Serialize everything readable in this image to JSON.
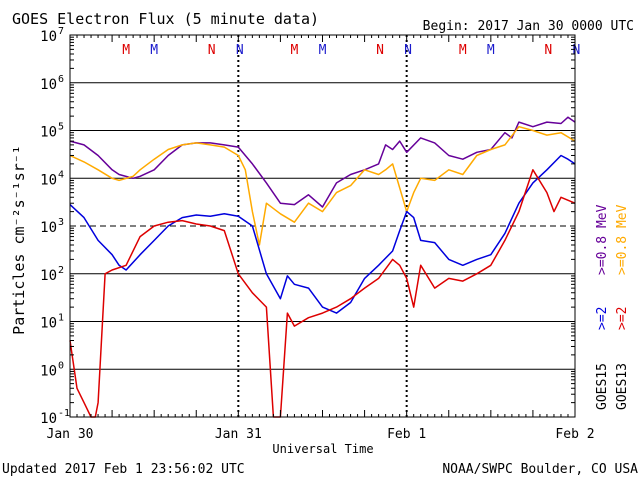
{
  "chart_data": {
    "type": "line",
    "title": "GOES Electron Flux (5 minute data)",
    "begin_label": "Begin: 2017 Jan 30 0000 UTC",
    "xlabel": "Universal Time",
    "ylabel": "Particles cm⁻²s⁻¹sr⁻¹",
    "y_scale": "log",
    "ylim": [
      0.1,
      10000000
    ],
    "y_ticks": [
      {
        "value": 0.1,
        "base": "10",
        "exp": "-1"
      },
      {
        "value": 1,
        "base": "10",
        "exp": "0"
      },
      {
        "value": 10,
        "base": "10",
        "exp": "1"
      },
      {
        "value": 100,
        "base": "10",
        "exp": "2"
      },
      {
        "value": 1000,
        "base": "10",
        "exp": "3"
      },
      {
        "value": 10000,
        "base": "10",
        "exp": "4"
      },
      {
        "value": 100000,
        "base": "10",
        "exp": "5"
      },
      {
        "value": 1000000,
        "base": "10",
        "exp": "6"
      },
      {
        "value": 10000000,
        "base": "10",
        "exp": "7"
      }
    ],
    "dashed_level": 1000,
    "xlim": [
      0,
      72
    ],
    "x_unit": "hours since 2017 Jan 30 0000 UTC",
    "x_ticks": [
      {
        "value": 0,
        "label": "Jan 30"
      },
      {
        "value": 24,
        "label": "Jan 31"
      },
      {
        "value": 48,
        "label": "Feb 1"
      },
      {
        "value": 72,
        "label": "Feb 2"
      }
    ],
    "day_lines": [
      24,
      48
    ],
    "mn_markers": [
      {
        "t": 8,
        "label": "M",
        "color": "#dd0000"
      },
      {
        "t": 12,
        "label": "M",
        "color": "#1a1acc"
      },
      {
        "t": 20.2,
        "label": "N",
        "color": "#dd0000"
      },
      {
        "t": 24.2,
        "label": "N",
        "color": "#1a1acc"
      },
      {
        "t": 32,
        "label": "M",
        "color": "#dd0000"
      },
      {
        "t": 36,
        "label": "M",
        "color": "#1a1acc"
      },
      {
        "t": 44.2,
        "label": "N",
        "color": "#dd0000"
      },
      {
        "t": 48.2,
        "label": "N",
        "color": "#1a1acc"
      },
      {
        "t": 56,
        "label": "M",
        "color": "#dd0000"
      },
      {
        "t": 60,
        "label": "M",
        "color": "#1a1acc"
      },
      {
        "t": 68.2,
        "label": "N",
        "color": "#dd0000"
      },
      {
        "t": 72.2,
        "label": "N",
        "color": "#1a1acc"
      }
    ],
    "legend": {
      "placement": "right",
      "goes15": {
        "label": "GOES15",
        "e08": ">=0.8 MeV",
        "e2": ">=2"
      },
      "goes13": {
        "label": "GOES13",
        "e08": ">=0.8 MeV",
        "e2": ">=2"
      }
    },
    "series": [
      {
        "name": "GOES15 >=0.8 MeV",
        "color": "#660099",
        "points": [
          [
            0,
            60000
          ],
          [
            2,
            50000
          ],
          [
            4,
            30000
          ],
          [
            6,
            15000
          ],
          [
            7,
            12000
          ],
          [
            9,
            10000
          ],
          [
            10,
            11000
          ],
          [
            12,
            15000
          ],
          [
            14,
            30000
          ],
          [
            16,
            50000
          ],
          [
            18,
            55000
          ],
          [
            20,
            55000
          ],
          [
            22,
            50000
          ],
          [
            24,
            45000
          ],
          [
            26,
            20000
          ],
          [
            28,
            8000
          ],
          [
            30,
            3000
          ],
          [
            32,
            2800
          ],
          [
            34,
            4500
          ],
          [
            36,
            2500
          ],
          [
            38,
            8000
          ],
          [
            40,
            12000
          ],
          [
            42,
            15000
          ],
          [
            44,
            20000
          ],
          [
            45,
            50000
          ],
          [
            46,
            40000
          ],
          [
            47,
            60000
          ],
          [
            48,
            35000
          ],
          [
            50,
            70000
          ],
          [
            52,
            55000
          ],
          [
            54,
            30000
          ],
          [
            56,
            25000
          ],
          [
            58,
            35000
          ],
          [
            60,
            40000
          ],
          [
            62,
            90000
          ],
          [
            63,
            70000
          ],
          [
            64,
            150000
          ],
          [
            66,
            120000
          ],
          [
            68,
            150000
          ],
          [
            70,
            140000
          ],
          [
            71,
            190000
          ],
          [
            72,
            150000
          ]
        ]
      },
      {
        "name": "GOES13 >=0.8 MeV",
        "color": "#ffaa00",
        "points": [
          [
            0,
            30000
          ],
          [
            2,
            22000
          ],
          [
            4,
            15000
          ],
          [
            6,
            10000
          ],
          [
            7,
            9000
          ],
          [
            9,
            11000
          ],
          [
            10,
            15000
          ],
          [
            12,
            25000
          ],
          [
            14,
            40000
          ],
          [
            16,
            50000
          ],
          [
            18,
            55000
          ],
          [
            20,
            50000
          ],
          [
            22,
            45000
          ],
          [
            24,
            30000
          ],
          [
            25,
            15000
          ],
          [
            26,
            2000
          ],
          [
            27,
            400
          ],
          [
            28,
            3000
          ],
          [
            30,
            1800
          ],
          [
            32,
            1200
          ],
          [
            34,
            3000
          ],
          [
            36,
            2000
          ],
          [
            38,
            5000
          ],
          [
            40,
            7000
          ],
          [
            42,
            15000
          ],
          [
            44,
            12000
          ],
          [
            45,
            15000
          ],
          [
            46,
            20000
          ],
          [
            48,
            2000
          ],
          [
            49,
            5000
          ],
          [
            50,
            10000
          ],
          [
            52,
            9000
          ],
          [
            54,
            15000
          ],
          [
            56,
            12000
          ],
          [
            58,
            30000
          ],
          [
            60,
            40000
          ],
          [
            62,
            50000
          ],
          [
            64,
            120000
          ],
          [
            66,
            100000
          ],
          [
            68,
            80000
          ],
          [
            70,
            90000
          ],
          [
            72,
            60000
          ]
        ]
      },
      {
        "name": "GOES15 >=2 MeV",
        "color": "#0000dd",
        "points": [
          [
            0,
            2800
          ],
          [
            2,
            1500
          ],
          [
            4,
            500
          ],
          [
            6,
            250
          ],
          [
            7,
            150
          ],
          [
            8,
            120
          ],
          [
            10,
            250
          ],
          [
            12,
            500
          ],
          [
            14,
            1000
          ],
          [
            16,
            1500
          ],
          [
            18,
            1700
          ],
          [
            20,
            1600
          ],
          [
            22,
            1800
          ],
          [
            24,
            1600
          ],
          [
            26,
            1000
          ],
          [
            28,
            100
          ],
          [
            30,
            30
          ],
          [
            31,
            90
          ],
          [
            32,
            60
          ],
          [
            34,
            50
          ],
          [
            36,
            20
          ],
          [
            38,
            15
          ],
          [
            40,
            25
          ],
          [
            42,
            80
          ],
          [
            44,
            150
          ],
          [
            46,
            300
          ],
          [
            47,
            800
          ],
          [
            48,
            2000
          ],
          [
            49,
            1500
          ],
          [
            50,
            500
          ],
          [
            52,
            450
          ],
          [
            54,
            200
          ],
          [
            56,
            150
          ],
          [
            58,
            200
          ],
          [
            60,
            250
          ],
          [
            62,
            700
          ],
          [
            64,
            3000
          ],
          [
            66,
            8000
          ],
          [
            68,
            15000
          ],
          [
            70,
            30000
          ],
          [
            71,
            25000
          ],
          [
            72,
            20000
          ]
        ]
      },
      {
        "name": "GOES13 >=2 MeV",
        "color": "#dd0000",
        "points": [
          [
            0,
            4
          ],
          [
            1,
            0.4
          ],
          [
            2,
            0.2
          ],
          [
            3,
            0.1
          ],
          [
            3.6,
            0.1
          ],
          [
            4,
            0.2
          ],
          [
            5,
            100
          ],
          [
            6,
            120
          ],
          [
            8,
            150
          ],
          [
            10,
            600
          ],
          [
            12,
            1000
          ],
          [
            14,
            1200
          ],
          [
            16,
            1300
          ],
          [
            18,
            1100
          ],
          [
            20,
            1000
          ],
          [
            22,
            800
          ],
          [
            24,
            100
          ],
          [
            26,
            40
          ],
          [
            28,
            20
          ],
          [
            29,
            0.1
          ],
          [
            30,
            0.1
          ],
          [
            31,
            15
          ],
          [
            32,
            8
          ],
          [
            34,
            12
          ],
          [
            36,
            15
          ],
          [
            38,
            20
          ],
          [
            40,
            30
          ],
          [
            42,
            50
          ],
          [
            44,
            80
          ],
          [
            46,
            200
          ],
          [
            47,
            150
          ],
          [
            48,
            80
          ],
          [
            49,
            20
          ],
          [
            50,
            150
          ],
          [
            52,
            50
          ],
          [
            54,
            80
          ],
          [
            56,
            70
          ],
          [
            58,
            100
          ],
          [
            60,
            150
          ],
          [
            62,
            500
          ],
          [
            64,
            2000
          ],
          [
            66,
            15000
          ],
          [
            68,
            5000
          ],
          [
            69,
            2000
          ],
          [
            70,
            4000
          ],
          [
            72,
            3000
          ]
        ]
      }
    ]
  },
  "footer": {
    "updated": "Updated 2017 Feb  1 23:56:02 UTC",
    "source": "NOAA/SWPC Boulder, CO USA"
  }
}
